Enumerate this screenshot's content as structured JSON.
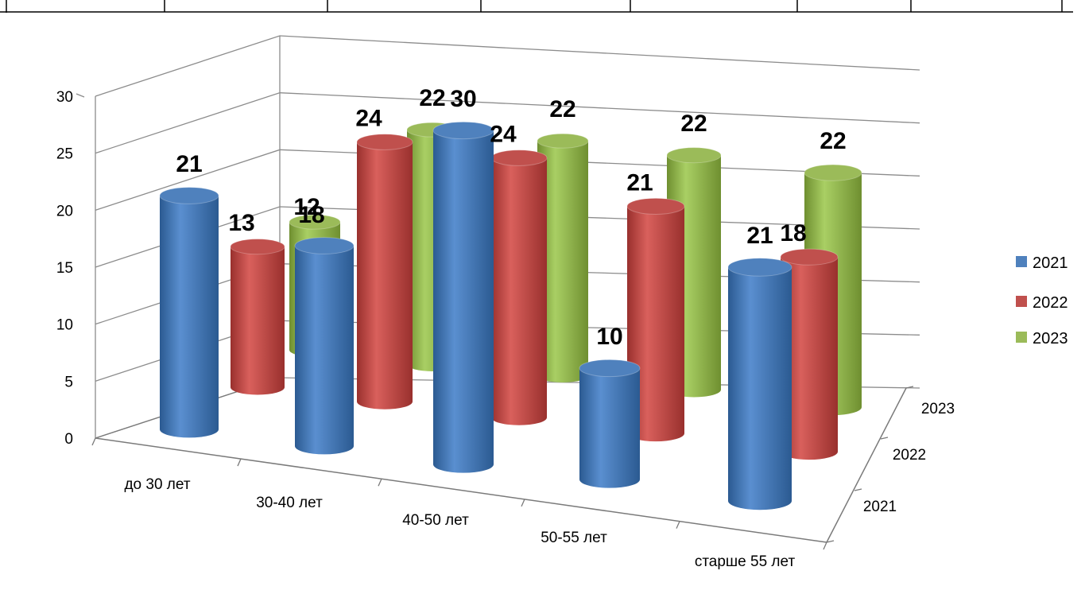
{
  "chart_data": {
    "type": "bar",
    "categories": [
      "до 30 лет",
      "30-40 лет",
      "40-50 лет",
      "50-55 лет",
      "старше 55 лет"
    ],
    "series": [
      {
        "name": "2021",
        "values": [
          21,
          18,
          30,
          10,
          21
        ],
        "color": "#4F81BD"
      },
      {
        "name": "2022",
        "values": [
          13,
          24,
          24,
          21,
          18
        ],
        "color": "#C0504D"
      },
      {
        "name": "2023",
        "values": [
          12,
          22,
          22,
          22,
          22
        ],
        "color": "#9BBB59"
      }
    ],
    "y_ticks": [
      "0",
      "5",
      "10",
      "15",
      "20",
      "25",
      "30"
    ],
    "depth_ticks": [
      "2021",
      "2022",
      "2023"
    ],
    "ylim": [
      0,
      30
    ],
    "style": "3d-cylinder",
    "grid": true,
    "legend": "right"
  }
}
